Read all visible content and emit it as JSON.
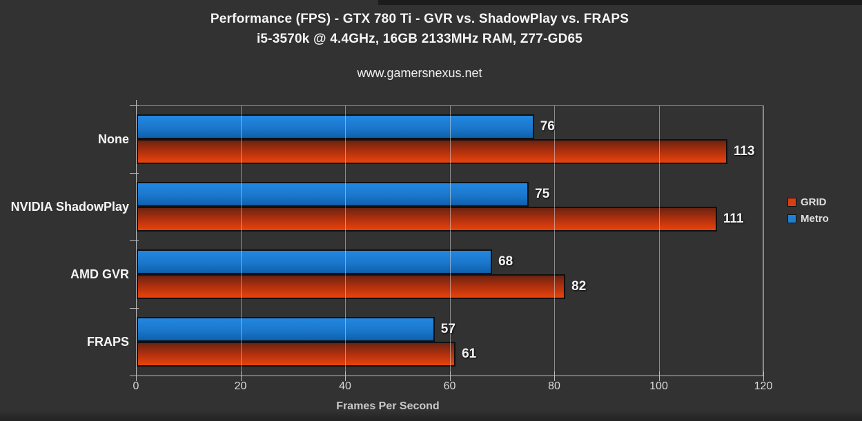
{
  "page": {
    "title_line1": "Performance (FPS) - GTX 780 Ti - GVR vs. ShadowPlay vs. FRAPS",
    "title_line2": "i5-3570k @ 4.4GHz, 16GB 2133MHz RAM, Z77-GD65",
    "watermark": "www.gamersnexus.net"
  },
  "chart_data": {
    "type": "bar",
    "orientation": "horizontal",
    "title": "Performance (FPS) - GTX 780 Ti - GVR vs. ShadowPlay vs. FRAPS",
    "subtitle": "i5-3570k @ 4.4GHz, 16GB 2133MHz RAM, Z77-GD65",
    "categories": [
      "None",
      "NVIDIA ShadowPlay",
      "AMD GVR",
      "FRAPS"
    ],
    "series": [
      {
        "name": "Metro",
        "color": "#1b7ed6",
        "values": [
          76,
          75,
          68,
          57
        ]
      },
      {
        "name": "GRID",
        "color": "#d93d12",
        "values": [
          113,
          111,
          82,
          61
        ]
      }
    ],
    "legend": [
      {
        "label": "GRID",
        "color": "#d93d12"
      },
      {
        "label": "Metro",
        "color": "#1e7fd4"
      }
    ],
    "xlabel": "Frames Per Second",
    "xlim": [
      0,
      120
    ],
    "xticks": [
      0,
      20,
      40,
      60,
      80,
      100,
      120
    ],
    "grid": true,
    "legend_position": "right",
    "value_labels": true,
    "background_color": "#323232"
  }
}
